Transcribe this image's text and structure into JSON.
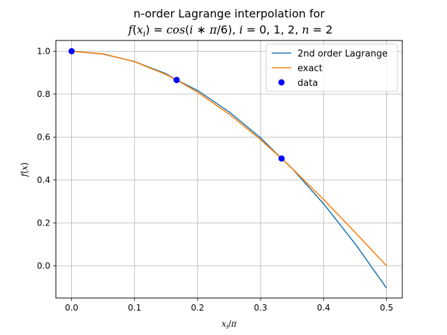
{
  "chart_data": {
    "type": "line",
    "title_line1": "n-order Lagrange interpolation for",
    "title_line2": "f(x_i) = cos(i * π/6), i = 0, 1, 2, n = 2",
    "xlabel": "x_i/π",
    "ylabel": "f(x)",
    "xlim": [
      -0.025,
      0.525
    ],
    "ylim": [
      -0.15,
      1.05
    ],
    "xticks": [
      0.0,
      0.1,
      0.2,
      0.3,
      0.4,
      0.5
    ],
    "xtick_labels": [
      "0.0",
      "0.1",
      "0.2",
      "0.3",
      "0.4",
      "0.5"
    ],
    "yticks": [
      0.0,
      0.2,
      0.4,
      0.6,
      0.8,
      1.0
    ],
    "ytick_labels": [
      "0.0",
      "0.2",
      "0.4",
      "0.6",
      "0.8",
      "1.0"
    ],
    "grid": true,
    "legend_position": "upper right",
    "series": [
      {
        "name": "2nd order Lagrange",
        "kind": "line",
        "color": "#1f77b4",
        "x": [
          0.0,
          0.05,
          0.1,
          0.15,
          0.1667,
          0.2,
          0.25,
          0.3,
          0.3333,
          0.35,
          0.4,
          0.45,
          0.5
        ],
        "y": [
          1.0,
          0.9866,
          0.9517,
          0.8951,
          0.866,
          0.8171,
          0.7175,
          0.5963,
          0.5,
          0.4536,
          0.2893,
          0.1034,
          -0.1039
        ]
      },
      {
        "name": "exact",
        "kind": "line",
        "color": "#ff7f0e",
        "x": [
          0.0,
          0.05,
          0.1,
          0.15,
          0.1667,
          0.2,
          0.25,
          0.3,
          0.3333,
          0.35,
          0.4,
          0.45,
          0.5
        ],
        "y": [
          1.0,
          0.9877,
          0.9511,
          0.891,
          0.866,
          0.809,
          0.7071,
          0.5878,
          0.5,
          0.454,
          0.309,
          0.1564,
          0.0
        ]
      },
      {
        "name": "data",
        "kind": "scatter",
        "color": "#0000ff",
        "x": [
          0.0,
          0.1667,
          0.3333
        ],
        "y": [
          1.0,
          0.866,
          0.5
        ]
      }
    ]
  }
}
